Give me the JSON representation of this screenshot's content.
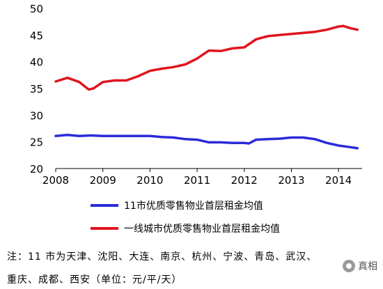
{
  "chart_data": {
    "type": "line",
    "ylim": [
      20,
      50
    ],
    "yticks": [
      "20",
      "25",
      "30",
      "35",
      "40",
      "45",
      "50"
    ],
    "xlim": [
      2008,
      2014.5
    ],
    "xticks": [
      "2008",
      "2009",
      "2010",
      "2011",
      "2012",
      "2013",
      "2014"
    ],
    "grid": false,
    "legend_position": "bottom",
    "series": [
      {
        "name": "11市优质零售物业首层租金均值",
        "color": "#2b2bd9",
        "points": [
          [
            2008.0,
            26.1
          ],
          [
            2008.25,
            26.3
          ],
          [
            2008.5,
            26.1
          ],
          [
            2008.75,
            26.2
          ],
          [
            2009.0,
            26.1
          ],
          [
            2009.25,
            26.1
          ],
          [
            2009.5,
            26.1
          ],
          [
            2009.75,
            26.1
          ],
          [
            2010.0,
            26.1
          ],
          [
            2010.25,
            25.9
          ],
          [
            2010.5,
            25.8
          ],
          [
            2010.75,
            25.5
          ],
          [
            2011.0,
            25.4
          ],
          [
            2011.25,
            24.9
          ],
          [
            2011.5,
            24.9
          ],
          [
            2011.75,
            24.8
          ],
          [
            2012.0,
            24.8
          ],
          [
            2012.1,
            24.7
          ],
          [
            2012.25,
            25.4
          ],
          [
            2012.5,
            25.5
          ],
          [
            2012.75,
            25.6
          ],
          [
            2013.0,
            25.8
          ],
          [
            2013.25,
            25.8
          ],
          [
            2013.5,
            25.5
          ],
          [
            2013.75,
            24.8
          ],
          [
            2014.0,
            24.3
          ],
          [
            2014.25,
            24.0
          ],
          [
            2014.4,
            23.8
          ]
        ]
      },
      {
        "name": "一线城市优质零售物业首层租金均值",
        "color": "#e0141e",
        "points": [
          [
            2008.0,
            36.3
          ],
          [
            2008.25,
            37.0
          ],
          [
            2008.5,
            36.2
          ],
          [
            2008.7,
            34.8
          ],
          [
            2008.8,
            35.0
          ],
          [
            2009.0,
            36.2
          ],
          [
            2009.25,
            36.5
          ],
          [
            2009.5,
            36.5
          ],
          [
            2009.75,
            37.3
          ],
          [
            2010.0,
            38.3
          ],
          [
            2010.25,
            38.7
          ],
          [
            2010.5,
            39.0
          ],
          [
            2010.75,
            39.5
          ],
          [
            2011.0,
            40.6
          ],
          [
            2011.25,
            42.1
          ],
          [
            2011.5,
            42.0
          ],
          [
            2011.75,
            42.5
          ],
          [
            2012.0,
            42.7
          ],
          [
            2012.25,
            44.2
          ],
          [
            2012.5,
            44.8
          ],
          [
            2012.75,
            45.0
          ],
          [
            2013.0,
            45.2
          ],
          [
            2013.25,
            45.4
          ],
          [
            2013.5,
            45.6
          ],
          [
            2013.75,
            46.0
          ],
          [
            2014.0,
            46.6
          ],
          [
            2014.1,
            46.7
          ],
          [
            2014.25,
            46.3
          ],
          [
            2014.4,
            46.0
          ]
        ]
      }
    ]
  },
  "notes": {
    "line1": "注：11 市为天津、沈阳、大连、南京、杭州、宁波、青岛、武汉、",
    "line2": "重庆、成都、西安（单位：元/平/天）"
  },
  "watermark": {
    "text": "真相",
    "icon": "wechat-icon"
  }
}
